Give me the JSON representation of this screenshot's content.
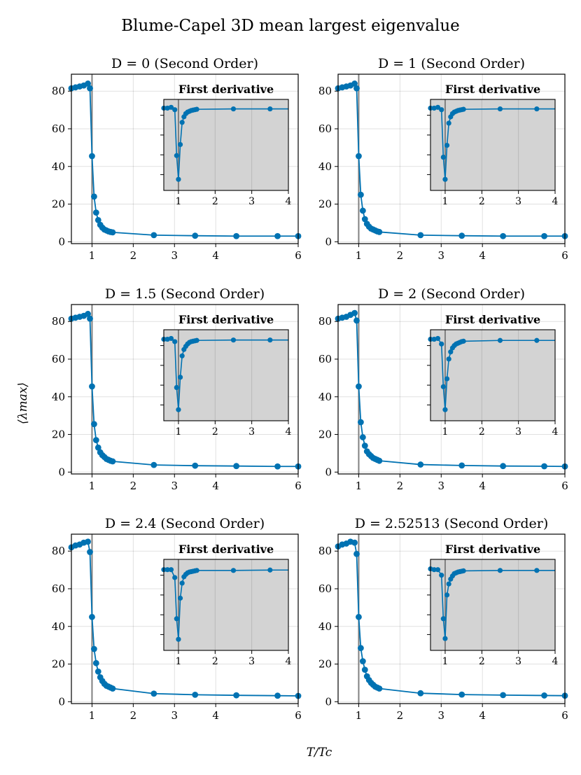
{
  "figure": {
    "title": "Blume-Capel 3D mean largest eigenvalue",
    "ylabel": "⟨λmax⟩",
    "xlabel": "T/Tc",
    "series_color": "#0072B2",
    "inset_background": "#d3d3d3",
    "vline_color": "#808080"
  },
  "chart_data": [
    {
      "type": "line",
      "title": "D = 0 (Second Order)",
      "xlabel": "T/Tc",
      "ylabel": "⟨λmax⟩",
      "xlim": [
        0.5,
        6
      ],
      "ylim": [
        -1,
        89
      ],
      "xticks": [
        1,
        2,
        3,
        4,
        6
      ],
      "yticks": [
        0,
        20,
        40,
        60,
        80
      ],
      "vline": 1,
      "x": [
        0.5,
        0.6,
        0.7,
        0.8,
        0.9,
        0.95,
        1.0,
        1.05,
        1.1,
        1.15,
        1.2,
        1.25,
        1.3,
        1.35,
        1.4,
        1.45,
        1.5,
        2.5,
        3.5,
        4.5,
        5.5,
        6.0
      ],
      "y": [
        81.5,
        82.0,
        82.5,
        83.0,
        84.0,
        81.5,
        45.5,
        24.0,
        15.5,
        11.5,
        9.0,
        7.5,
        6.5,
        6.0,
        5.5,
        5.2,
        5.0,
        3.5,
        3.2,
        3.0,
        3.0,
        3.0
      ],
      "inset": {
        "title": "First derivative",
        "xlim": [
          0.6,
          4
        ],
        "ylim": [
          -0.1,
          1.05
        ],
        "xticks": [
          1,
          2,
          3,
          4
        ],
        "x": [
          0.6,
          0.7,
          0.8,
          0.9,
          0.95,
          1.0,
          1.05,
          1.1,
          1.15,
          1.2,
          1.25,
          1.3,
          1.35,
          1.4,
          1.45,
          1.5,
          2.5,
          3.5,
          4.0
        ],
        "y": [
          0.94,
          0.94,
          0.95,
          0.92,
          0.34,
          0.04,
          0.48,
          0.76,
          0.83,
          0.87,
          0.89,
          0.9,
          0.91,
          0.915,
          0.92,
          0.925,
          0.93,
          0.93,
          0.93
        ]
      }
    },
    {
      "type": "line",
      "title": "D = 1 (Second Order)",
      "xlabel": "T/Tc",
      "ylabel": "⟨λmax⟩",
      "xlim": [
        0.5,
        6
      ],
      "ylim": [
        -1,
        89
      ],
      "xticks": [
        1,
        2,
        3,
        4,
        6
      ],
      "yticks": [
        0,
        20,
        40,
        60,
        80
      ],
      "vline": 1,
      "x": [
        0.5,
        0.6,
        0.7,
        0.8,
        0.9,
        0.95,
        1.0,
        1.05,
        1.1,
        1.15,
        1.2,
        1.25,
        1.3,
        1.35,
        1.4,
        1.45,
        1.5,
        2.5,
        3.5,
        4.5,
        5.5,
        6.0
      ],
      "y": [
        81.5,
        82.0,
        82.5,
        83.0,
        84.0,
        81.5,
        45.5,
        25.0,
        16.5,
        12.0,
        9.5,
        8.0,
        7.0,
        6.5,
        6.0,
        5.5,
        5.2,
        3.5,
        3.2,
        3.0,
        3.0,
        3.0
      ],
      "inset": {
        "title": "First derivative",
        "xlim": [
          0.6,
          4
        ],
        "ylim": [
          -0.1,
          1.05
        ],
        "xticks": [
          1,
          2,
          3,
          4
        ],
        "x": [
          0.6,
          0.7,
          0.8,
          0.9,
          0.95,
          1.0,
          1.05,
          1.1,
          1.15,
          1.2,
          1.25,
          1.3,
          1.35,
          1.4,
          1.45,
          1.5,
          2.5,
          3.5,
          4.0
        ],
        "y": [
          0.94,
          0.94,
          0.95,
          0.92,
          0.32,
          0.04,
          0.47,
          0.75,
          0.83,
          0.87,
          0.89,
          0.9,
          0.91,
          0.915,
          0.92,
          0.925,
          0.93,
          0.93,
          0.93
        ]
      }
    },
    {
      "type": "line",
      "title": "D = 1.5 (Second Order)",
      "xlabel": "T/Tc",
      "ylabel": "⟨λmax⟩",
      "xlim": [
        0.5,
        6
      ],
      "ylim": [
        -1,
        89
      ],
      "xticks": [
        1,
        2,
        3,
        4,
        6
      ],
      "yticks": [
        0,
        20,
        40,
        60,
        80
      ],
      "vline": 1,
      "x": [
        0.5,
        0.6,
        0.7,
        0.8,
        0.9,
        0.95,
        1.0,
        1.05,
        1.1,
        1.15,
        1.2,
        1.25,
        1.3,
        1.35,
        1.4,
        1.45,
        1.5,
        2.5,
        3.5,
        4.5,
        5.5,
        6.0
      ],
      "y": [
        81.5,
        82.0,
        82.5,
        83.0,
        84.0,
        81.5,
        45.5,
        25.5,
        17.0,
        13.0,
        10.5,
        9.0,
        8.0,
        7.0,
        6.5,
        6.0,
        5.7,
        3.8,
        3.4,
        3.2,
        3.0,
        3.0
      ],
      "inset": {
        "title": "First derivative",
        "xlim": [
          0.6,
          4
        ],
        "ylim": [
          -0.1,
          1.05
        ],
        "xticks": [
          1,
          2,
          3,
          4
        ],
        "x": [
          0.6,
          0.7,
          0.8,
          0.9,
          0.95,
          1.0,
          1.05,
          1.1,
          1.15,
          1.2,
          1.25,
          1.3,
          1.35,
          1.4,
          1.45,
          1.5,
          2.5,
          3.5,
          4.0
        ],
        "y": [
          0.93,
          0.93,
          0.94,
          0.9,
          0.32,
          0.04,
          0.45,
          0.72,
          0.8,
          0.84,
          0.87,
          0.89,
          0.9,
          0.905,
          0.91,
          0.915,
          0.92,
          0.92,
          0.92
        ]
      }
    },
    {
      "type": "line",
      "title": "D = 2 (Second Order)",
      "xlabel": "T/Tc",
      "ylabel": "⟨λmax⟩",
      "xlim": [
        0.5,
        6
      ],
      "ylim": [
        -1,
        89
      ],
      "xticks": [
        1,
        2,
        3,
        4,
        6
      ],
      "yticks": [
        0,
        20,
        40,
        60,
        80
      ],
      "vline": 1,
      "x": [
        0.5,
        0.6,
        0.7,
        0.8,
        0.9,
        0.95,
        1.0,
        1.05,
        1.1,
        1.15,
        1.2,
        1.25,
        1.3,
        1.35,
        1.4,
        1.45,
        1.5,
        2.5,
        3.5,
        4.5,
        5.5,
        6.0
      ],
      "y": [
        81.5,
        82.0,
        82.5,
        83.5,
        84.5,
        80.5,
        45.5,
        26.5,
        18.5,
        14.0,
        11.0,
        9.5,
        8.5,
        7.5,
        7.0,
        6.5,
        6.0,
        4.0,
        3.5,
        3.2,
        3.1,
        3.0
      ],
      "inset": {
        "title": "First derivative",
        "xlim": [
          0.6,
          4
        ],
        "ylim": [
          -0.1,
          1.05
        ],
        "xticks": [
          1,
          2,
          3,
          4
        ],
        "x": [
          0.6,
          0.7,
          0.8,
          0.9,
          0.95,
          1.0,
          1.05,
          1.1,
          1.15,
          1.2,
          1.25,
          1.3,
          1.35,
          1.4,
          1.45,
          1.5,
          2.5,
          3.5,
          4.0
        ],
        "y": [
          0.93,
          0.93,
          0.94,
          0.87,
          0.33,
          0.04,
          0.43,
          0.68,
          0.77,
          0.82,
          0.85,
          0.87,
          0.88,
          0.89,
          0.9,
          0.905,
          0.915,
          0.915,
          0.915
        ]
      }
    },
    {
      "type": "line",
      "title": "D = 2.4 (Second Order)",
      "xlabel": "T/Tc",
      "ylabel": "⟨λmax⟩",
      "xlim": [
        0.5,
        6
      ],
      "ylim": [
        -1,
        89
      ],
      "xticks": [
        1,
        2,
        3,
        4,
        6
      ],
      "yticks": [
        0,
        20,
        40,
        60,
        80
      ],
      "vline": 1,
      "x": [
        0.5,
        0.6,
        0.7,
        0.8,
        0.9,
        0.95,
        1.0,
        1.05,
        1.1,
        1.15,
        1.2,
        1.25,
        1.3,
        1.35,
        1.4,
        1.45,
        1.5,
        2.5,
        3.5,
        4.5,
        5.5,
        6.0
      ],
      "y": [
        82.0,
        83.0,
        83.5,
        84.5,
        85.0,
        79.5,
        45.0,
        28.0,
        20.5,
        16.0,
        13.0,
        11.0,
        9.5,
        8.5,
        8.0,
        7.5,
        7.0,
        4.3,
        3.7,
        3.4,
        3.2,
        3.1
      ],
      "inset": {
        "title": "First derivative",
        "xlim": [
          0.6,
          4
        ],
        "ylim": [
          -0.1,
          1.05
        ],
        "xticks": [
          1,
          2,
          3,
          4
        ],
        "x": [
          0.6,
          0.7,
          0.8,
          0.9,
          0.95,
          1.0,
          1.05,
          1.1,
          1.15,
          1.2,
          1.25,
          1.3,
          1.35,
          1.4,
          1.45,
          1.5,
          2.5,
          3.5,
          4.0
        ],
        "y": [
          0.92,
          0.92,
          0.92,
          0.82,
          0.3,
          0.04,
          0.56,
          0.75,
          0.83,
          0.86,
          0.88,
          0.89,
          0.895,
          0.9,
          0.905,
          0.91,
          0.91,
          0.915,
          0.915
        ]
      }
    },
    {
      "type": "line",
      "title": "D = 2.52513 (Second Order)",
      "xlabel": "T/Tc",
      "ylabel": "⟨λmax⟩",
      "xlim": [
        0.5,
        6
      ],
      "ylim": [
        -1,
        89
      ],
      "xticks": [
        1,
        2,
        3,
        4,
        6
      ],
      "yticks": [
        0,
        20,
        40,
        60,
        80
      ],
      "vline": 1,
      "x": [
        0.5,
        0.6,
        0.7,
        0.8,
        0.9,
        0.95,
        1.0,
        1.05,
        1.1,
        1.15,
        1.2,
        1.25,
        1.3,
        1.35,
        1.4,
        1.45,
        1.5,
        2.5,
        3.5,
        4.5,
        5.5,
        6.0
      ],
      "y": [
        82.5,
        83.5,
        84.0,
        85.0,
        84.5,
        78.5,
        45.0,
        28.5,
        21.5,
        17.0,
        13.5,
        11.5,
        10.0,
        9.0,
        8.0,
        7.5,
        7.0,
        4.5,
        3.8,
        3.5,
        3.3,
        3.2
      ],
      "inset": {
        "title": "First derivative",
        "xlim": [
          0.6,
          4
        ],
        "ylim": [
          -0.1,
          1.05
        ],
        "xticks": [
          1,
          2,
          3,
          4
        ],
        "x": [
          0.6,
          0.7,
          0.8,
          0.9,
          0.95,
          1.0,
          1.05,
          1.1,
          1.15,
          1.2,
          1.25,
          1.3,
          1.35,
          1.4,
          1.45,
          1.5,
          2.5,
          3.5,
          4.0
        ],
        "y": [
          0.93,
          0.92,
          0.92,
          0.85,
          0.3,
          0.05,
          0.6,
          0.74,
          0.8,
          0.84,
          0.87,
          0.88,
          0.89,
          0.895,
          0.9,
          0.905,
          0.91,
          0.91,
          0.91
        ]
      }
    }
  ]
}
